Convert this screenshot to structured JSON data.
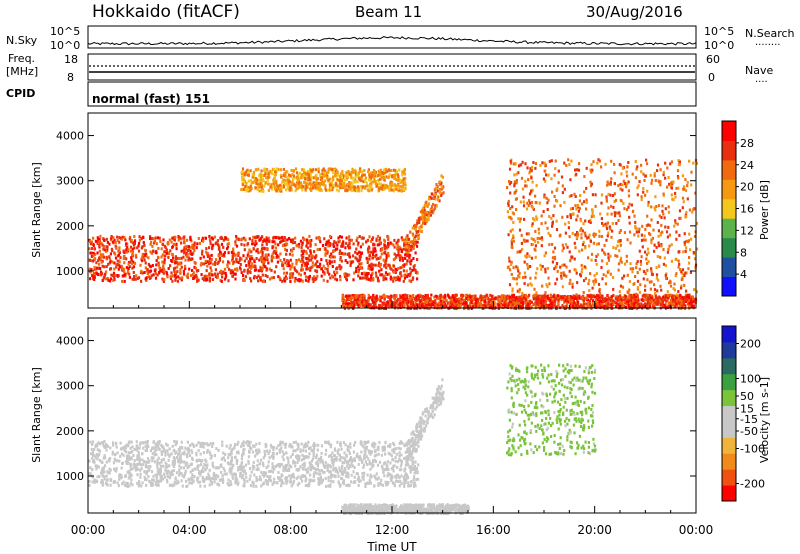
{
  "header": {
    "station": "Hokkaido (fitACF)",
    "beam": "Beam 11",
    "date": "30/Aug/2016"
  },
  "strip": {
    "nsky_label": "N.Sky",
    "nsearch_label": "N.Search",
    "nsearch_dots": "········",
    "left_top_tick": "10^5",
    "left_bottom_tick": "10^0",
    "right_top_tick": "10^5",
    "right_bottom_tick": "10^0",
    "freq_label_1": "Freq.",
    "freq_label_2": "[MHz]",
    "freq_top": "18",
    "freq_bottom": "8",
    "nave_label": "Nave",
    "nave_dots": "····",
    "nave_top": "60",
    "nave_bottom": "0",
    "cpid_label": "CPID",
    "cpid_value": "normal (fast) 151"
  },
  "colors": {
    "power": [
      "#1010ff",
      "#1f4fa0",
      "#2a8a4a",
      "#5cb34c",
      "#f2c81e",
      "#f59a10",
      "#f06a10",
      "#e83010",
      "#ff0000"
    ],
    "velocity": [
      "#ff0000",
      "#f05010",
      "#f08a1a",
      "#f0b43c",
      "#c8c8c8",
      "#c8c8c8",
      "#7ac43c",
      "#3aa040",
      "#2a6a60",
      "#1e3a9a",
      "#1414d0"
    ]
  },
  "chart_data": [
    {
      "type": "heatmap",
      "xlabel": "",
      "ylabel": "Slant Range [km]",
      "x_ticks": [
        "00:00",
        "04:00",
        "08:00",
        "12:00",
        "16:00",
        "20:00",
        "00:00"
      ],
      "y_ticks": [
        1000,
        2000,
        3000,
        4000
      ],
      "ylim": [
        180,
        4500
      ],
      "colorbar": {
        "label": "Power [dB]",
        "ticks": [
          4,
          8,
          12,
          16,
          20,
          24,
          28
        ],
        "range": [
          0,
          32
        ]
      },
      "features": [
        {
          "band": "main F-region echo",
          "start_ut_hours": 0,
          "end_ut_hours": 13,
          "range_km_approx": [
            800,
            1800
          ],
          "power_db_approx": 28
        },
        {
          "band": "rising echo",
          "start_ut_hours": 12.5,
          "end_ut_hours": 14,
          "range_km_approx": [
            1500,
            3000
          ],
          "power_db_approx": 24
        },
        {
          "band": "near-range ground",
          "start_ut_hours": 10,
          "end_ut_hours": 24,
          "range_km_approx": [
            200,
            500
          ],
          "power_db_approx": 28
        },
        {
          "band": "far-range echo",
          "start_ut_hours": 6,
          "end_ut_hours": 12.5,
          "range_km_approx": [
            2800,
            3300
          ],
          "power_db_approx": 20
        },
        {
          "band": "evening echoes",
          "start_ut_hours": 16.5,
          "end_ut_hours": 24,
          "range_km_approx": [
            500,
            3500
          ],
          "power_db_approx": 24
        }
      ]
    },
    {
      "type": "heatmap",
      "xlabel": "Time UT",
      "ylabel": "Slant Range [km]",
      "x_ticks": [
        "00:00",
        "04:00",
        "08:00",
        "12:00",
        "16:00",
        "20:00",
        "00:00"
      ],
      "y_ticks": [
        1000,
        2000,
        3000,
        4000
      ],
      "ylim": [
        180,
        4500
      ],
      "colorbar": {
        "label": "Velocity [m s-1]",
        "ticks": [
          -200,
          -100,
          -50,
          -15,
          15,
          50,
          100,
          200
        ],
        "range": [
          -250,
          250
        ]
      },
      "features": [
        {
          "band": "main echo, near-zero velocity (ground scatter)",
          "start_ut_hours": 0,
          "end_ut_hours": 13,
          "range_km_approx": [
            800,
            1800
          ],
          "velocity_approx": 0
        },
        {
          "band": "rising echo, weak negative",
          "start_ut_hours": 12.5,
          "end_ut_hours": 14,
          "range_km_approx": [
            1500,
            3000
          ],
          "velocity_approx": -30
        },
        {
          "band": "near-range, negative",
          "start_ut_hours": 10,
          "end_ut_hours": 15,
          "range_km_approx": [
            200,
            400
          ],
          "velocity_approx": -40
        },
        {
          "band": "evening echo, positive",
          "start_ut_hours": 16.5,
          "end_ut_hours": 20,
          "range_km_approx": [
            1500,
            3500
          ],
          "velocity_approx": 40
        }
      ]
    }
  ]
}
